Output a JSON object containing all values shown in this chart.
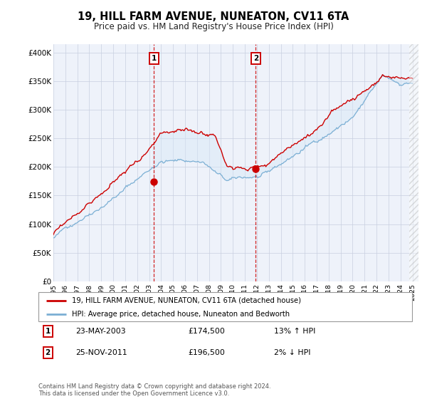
{
  "title": "19, HILL FARM AVENUE, NUNEATON, CV11 6TA",
  "subtitle": "Price paid vs. HM Land Registry's House Price Index (HPI)",
  "ylabel_ticks": [
    "£0",
    "£50K",
    "£100K",
    "£150K",
    "£200K",
    "£250K",
    "£300K",
    "£350K",
    "£400K"
  ],
  "ytick_vals": [
    0,
    50000,
    100000,
    150000,
    200000,
    250000,
    300000,
    350000,
    400000
  ],
  "ylim": [
    0,
    415000
  ],
  "xlim_start": 1995.0,
  "xlim_end": 2025.5,
  "hatch_start": 2024.75,
  "sale1_x": 2003.39,
  "sale1_y": 174500,
  "sale2_x": 2011.9,
  "sale2_y": 196500,
  "legend_red": "19, HILL FARM AVENUE, NUNEATON, CV11 6TA (detached house)",
  "legend_blue": "HPI: Average price, detached house, Nuneaton and Bedworth",
  "ann1_num": "1",
  "ann1_date": "23-MAY-2003",
  "ann1_price": "£174,500",
  "ann1_hpi": "13% ↑ HPI",
  "ann2_num": "2",
  "ann2_date": "25-NOV-2011",
  "ann2_price": "£196,500",
  "ann2_hpi": "2% ↓ HPI",
  "footer": "Contains HM Land Registry data © Crown copyright and database right 2024.\nThis data is licensed under the Open Government Licence v3.0.",
  "red_color": "#cc0000",
  "blue_color": "#7bafd4",
  "fill_color": "#d6e8f7",
  "bg_color": "#eef2fa",
  "grid_color": "#c8cfe0",
  "box_color": "#cc0000"
}
